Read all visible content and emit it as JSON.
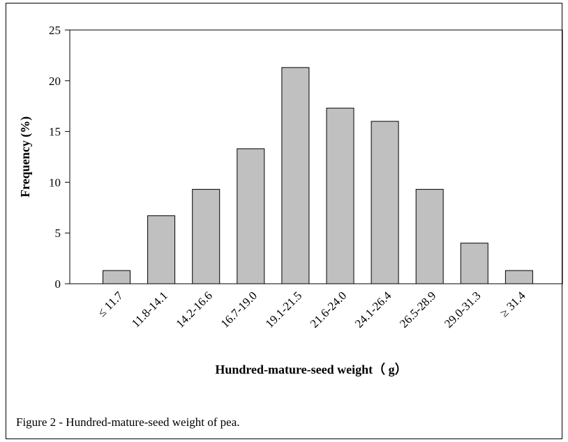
{
  "chart_data": {
    "type": "bar",
    "categories": [
      "≤ 11.7",
      "11.8-14.1",
      "14.2-16.6",
      "16.7-19.0",
      "19.1-21.5",
      "21.6-24.0",
      "24.1-26.4",
      "26.5-28.9",
      "29.0-31.3",
      "≥ 31.4"
    ],
    "values": [
      1.3,
      6.7,
      9.3,
      13.3,
      21.3,
      17.3,
      16.0,
      9.3,
      4.0,
      1.3
    ],
    "xlabel": "Hundred-mature-seed weight（ g）",
    "ylabel": "Frequency (%)",
    "ylim": [
      0,
      25
    ],
    "yticks": [
      0,
      5,
      10,
      15,
      20,
      25
    ],
    "grid": false,
    "colors": {
      "bar_fill": "#c0c0c0",
      "bar_stroke": "#000000"
    }
  },
  "caption": "Figure 2 - Hundred-mature-seed weight of pea."
}
